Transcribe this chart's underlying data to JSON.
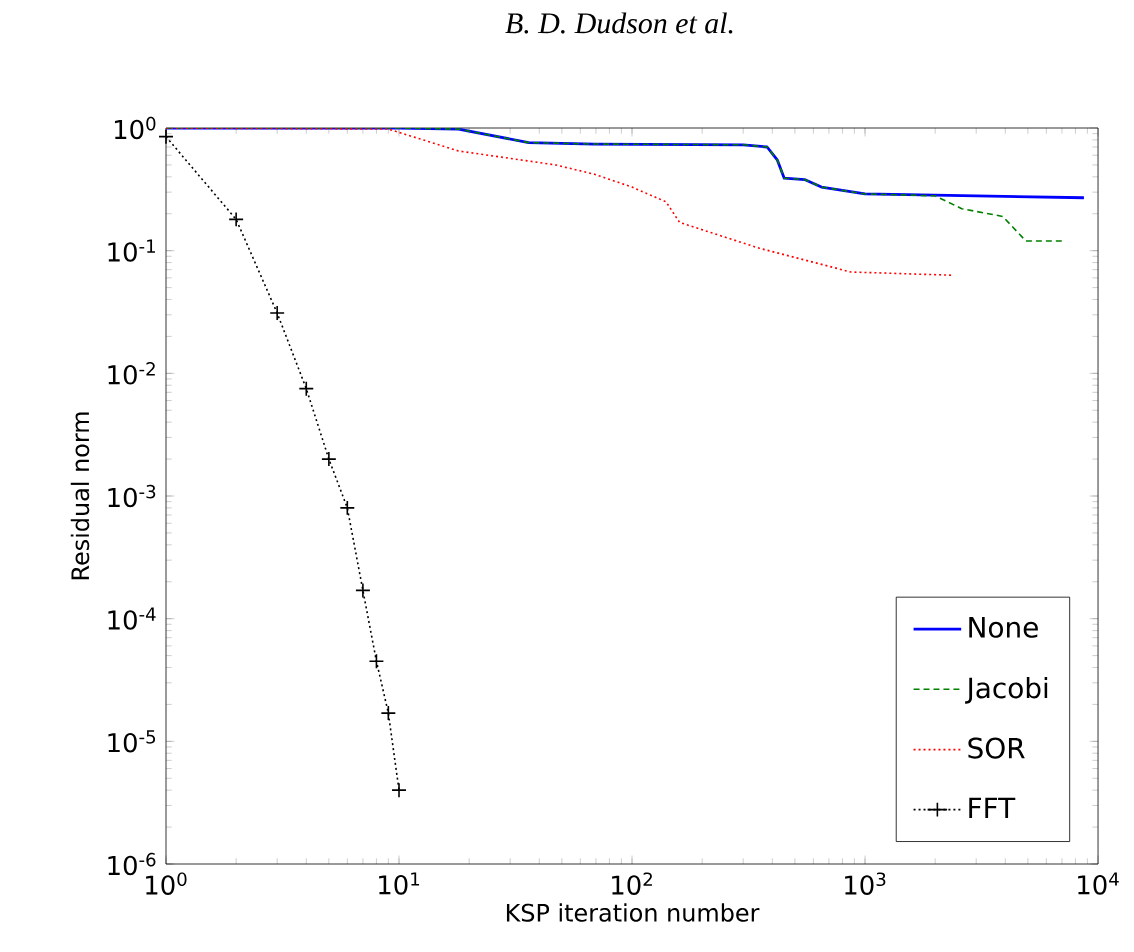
{
  "chart_data": {
    "type": "line",
    "xlabel": "KSP iteration number",
    "ylabel": "Residual norm",
    "log": "xy",
    "xlim": [
      1,
      10000
    ],
    "ylim": [
      1e-06,
      1
    ],
    "xticks": [
      {
        "value": 1,
        "label": "10$^{0}$"
      },
      {
        "value": 10,
        "label": "10$^{1}$"
      },
      {
        "value": 100,
        "label": "10$^{2}$"
      },
      {
        "value": 1000,
        "label": "10$^{3}$"
      },
      {
        "value": 10000,
        "label": "10$^{4}$"
      }
    ],
    "yticks": [
      {
        "value": 1e-06,
        "label": "10$^{-6}$"
      },
      {
        "value": 1e-05,
        "label": "10$^{-5}$"
      },
      {
        "value": 0.0001,
        "label": "10$^{-4}$"
      },
      {
        "value": 0.001,
        "label": "10$^{-3}$"
      },
      {
        "value": 0.01,
        "label": "10$^{-2}$"
      },
      {
        "value": 0.1,
        "label": "10$^{-1}$"
      },
      {
        "value": 1,
        "label": "10$^{0}$"
      }
    ],
    "legend": "bottom right",
    "grid": false,
    "annotations": [
      "B. D. Dudson et al."
    ],
    "series": [
      {
        "name": "None",
        "color": "#0000ff",
        "line_style": "solid",
        "marker": "none",
        "x": [
          1,
          10,
          18,
          36,
          69,
          300,
          380,
          420,
          450,
          550,
          650,
          1000,
          3000,
          8700
        ],
        "values": [
          1,
          1,
          0.98,
          0.76,
          0.74,
          0.73,
          0.7,
          0.55,
          0.39,
          0.38,
          0.33,
          0.29,
          0.28,
          0.27
        ]
      },
      {
        "name": "Jacobi",
        "color": "#008000",
        "line_style": "dashed",
        "marker": "none",
        "x": [
          1,
          10,
          18,
          36,
          69,
          300,
          380,
          420,
          450,
          550,
          650,
          1000,
          2000,
          2600,
          3900,
          4900,
          7000
        ],
        "values": [
          1,
          1,
          0.98,
          0.76,
          0.74,
          0.73,
          0.7,
          0.55,
          0.39,
          0.38,
          0.33,
          0.29,
          0.28,
          0.22,
          0.19,
          0.12,
          0.12
        ]
      },
      {
        "name": "SOR",
        "color": "#ff0000",
        "line_style": "dotted",
        "marker": "none",
        "x": [
          1,
          9,
          18,
          47,
          69,
          100,
          140,
          160,
          350,
          870,
          2400
        ],
        "values": [
          1,
          0.98,
          0.65,
          0.5,
          0.42,
          0.33,
          0.25,
          0.17,
          0.105,
          0.067,
          0.063
        ]
      },
      {
        "name": "FFT",
        "color": "#000000",
        "line_style": "dotted",
        "marker": "cross",
        "x": [
          1,
          2,
          3,
          4,
          5,
          6,
          7,
          8,
          9,
          10
        ],
        "values": [
          0.85,
          0.18,
          0.031,
          0.0075,
          0.002,
          0.0008,
          0.00017,
          4.5e-05,
          1.7e-05,
          4e-06
        ]
      }
    ]
  }
}
